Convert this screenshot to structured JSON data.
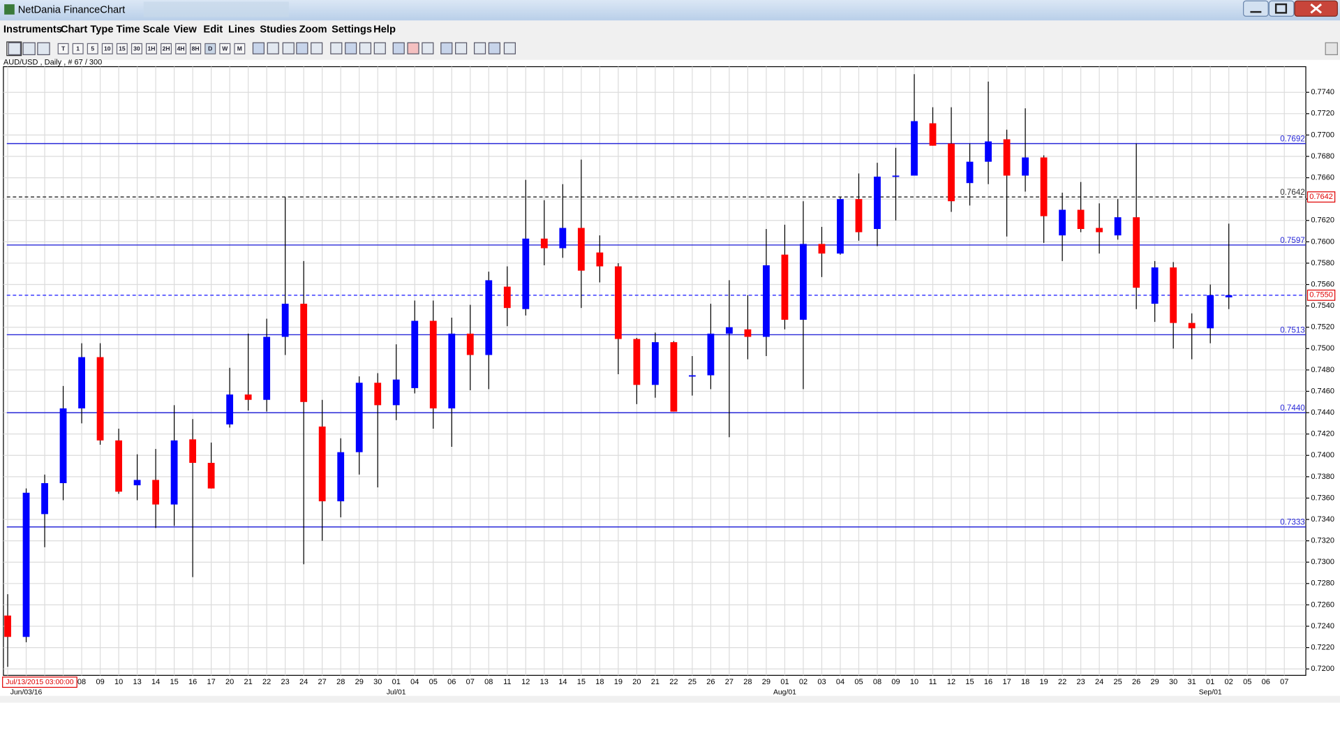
{
  "window": {
    "title": "NetDania FinanceChart"
  },
  "menu": [
    "Instruments",
    "Chart Type",
    "Time Scale",
    "View",
    "Edit",
    "Lines",
    "Studies",
    "Zoom",
    "Settings",
    "Help"
  ],
  "toolbar": [
    "T",
    "1",
    "5",
    "10",
    "15",
    "30",
    "1H",
    "2H",
    "4H",
    "8H",
    "D",
    "W",
    "M"
  ],
  "chart_data": {
    "type": "candlestick",
    "info": "AUD/USD , Daily , # 67 / 300",
    "cursor_time": "Jul/13/2015 03:00:00",
    "month_labels": [
      "Jun/03/16",
      "Jul/01",
      "Aug/01",
      "Sep/01"
    ],
    "categories": [
      null,
      null,
      null,
      null,
      "08",
      "09",
      "10",
      "13",
      "14",
      "15",
      "16",
      "17",
      "20",
      "21",
      "22",
      "23",
      "24",
      "27",
      "28",
      "29",
      "30",
      "01",
      "04",
      "05",
      "06",
      "07",
      "08",
      "11",
      "12",
      "13",
      "14",
      "15",
      "18",
      "19",
      "20",
      "21",
      "22",
      "25",
      "26",
      "27",
      "28",
      "29",
      "01",
      "02",
      "03",
      "04",
      "05",
      "08",
      "09",
      "10",
      "11",
      "12",
      "15",
      "16",
      "17",
      "18",
      "19",
      "22",
      "23",
      "24",
      "25",
      "26",
      "29",
      "30",
      "31",
      "01",
      "02",
      "05",
      "06",
      "07"
    ],
    "open": [
      0.725,
      0.723,
      0.7345,
      0.7374,
      0.7444,
      0.7492,
      0.7414,
      0.7372,
      0.7377,
      0.7354,
      0.7415,
      0.7393,
      0.7429,
      0.7457,
      0.7452,
      0.7511,
      0.7542,
      0.7427,
      0.7357,
      0.7403,
      0.7468,
      0.7447,
      0.7463,
      0.7526,
      0.7444,
      0.7514,
      0.7494,
      0.7558,
      0.7537,
      0.7603,
      0.7594,
      0.7613,
      0.759,
      0.7577,
      0.7509,
      0.7466,
      0.7506,
      0.7474,
      0.7475,
      0.7514,
      0.7518,
      0.7511,
      0.7588,
      0.7527,
      0.7598,
      0.7589,
      0.764,
      0.7612,
      0.7661,
      0.7662,
      0.7711,
      0.7692,
      0.7655,
      0.7675,
      0.7696,
      0.7662,
      0.7679,
      0.7606,
      0.763,
      0.7613,
      0.7606,
      0.7623,
      0.7542,
      0.7576,
      0.7524,
      0.7519,
      0.7548,
      null,
      null,
      null
    ],
    "high": [
      0.727,
      0.7369,
      0.7382,
      0.7465,
      0.7505,
      0.7505,
      0.7425,
      0.7401,
      0.7406,
      0.7447,
      0.7434,
      0.7412,
      0.7482,
      0.7514,
      0.7528,
      0.7642,
      0.7582,
      0.7452,
      0.7416,
      0.7474,
      0.7477,
      0.7504,
      0.7545,
      0.7545,
      0.7529,
      0.7541,
      0.7572,
      0.7577,
      0.7658,
      0.7639,
      0.7654,
      0.7677,
      0.7606,
      0.758,
      0.751,
      0.7515,
      0.7507,
      0.7493,
      0.7542,
      0.7564,
      0.755,
      0.7612,
      0.7616,
      0.7638,
      0.7614,
      0.7642,
      0.7664,
      0.7674,
      0.7688,
      0.7757,
      0.7726,
      0.7726,
      0.7692,
      0.775,
      0.7705,
      0.7725,
      0.7681,
      0.7646,
      0.7656,
      0.7636,
      0.764,
      0.7692,
      0.7582,
      0.7581,
      0.7533,
      0.756,
      0.7617,
      null,
      null,
      null
    ],
    "low": [
      0.7202,
      0.7225,
      0.7314,
      0.7358,
      0.743,
      0.741,
      0.7364,
      0.7358,
      0.7332,
      0.7334,
      0.7286,
      0.7369,
      0.7426,
      0.7442,
      0.7441,
      0.7494,
      0.7298,
      0.732,
      0.7342,
      0.7382,
      0.737,
      0.7433,
      0.7458,
      0.7425,
      0.7408,
      0.7461,
      0.7462,
      0.7521,
      0.7531,
      0.7578,
      0.7585,
      0.7538,
      0.7562,
      0.7476,
      0.7448,
      0.7454,
      0.7441,
      0.7456,
      0.7462,
      0.7417,
      0.749,
      0.7493,
      0.7518,
      0.7462,
      0.7567,
      0.7588,
      0.7601,
      0.7596,
      0.762,
      0.7662,
      0.769,
      0.7628,
      0.7634,
      0.7654,
      0.7605,
      0.7647,
      0.7599,
      0.7582,
      0.7609,
      0.7589,
      0.7602,
      0.7537,
      0.7525,
      0.75,
      0.749,
      0.7505,
      0.7537,
      null,
      null,
      null
    ],
    "close": [
      0.723,
      0.7365,
      0.7374,
      0.7444,
      0.7492,
      0.7414,
      0.7366,
      0.7377,
      0.7354,
      0.7414,
      0.7393,
      0.7369,
      0.7457,
      0.7452,
      0.7511,
      0.7542,
      0.745,
      0.7357,
      0.7403,
      0.7468,
      0.7447,
      0.7471,
      0.7526,
      0.7444,
      0.7514,
      0.7494,
      0.7564,
      0.7538,
      0.7603,
      0.7594,
      0.7613,
      0.7573,
      0.7577,
      0.7509,
      0.7466,
      0.7506,
      0.7441,
      0.7475,
      0.7514,
      0.752,
      0.7511,
      0.7578,
      0.7527,
      0.7598,
      0.7589,
      0.764,
      0.7609,
      0.7661,
      0.7662,
      0.7713,
      0.769,
      0.7638,
      0.7675,
      0.7694,
      0.7662,
      0.7679,
      0.7624,
      0.763,
      0.7612,
      0.7609,
      0.7623,
      0.7557,
      0.7576,
      0.7524,
      0.7519,
      0.755,
      0.755,
      null,
      null,
      null
    ],
    "up_color": "#0000ff",
    "down_color": "#ff0000",
    "ylim": [
      0.7194,
      0.7764
    ],
    "yticks": [
      {
        "value": 0.72,
        "label": "0.7200"
      },
      {
        "value": 0.722,
        "label": "0.7220"
      },
      {
        "value": 0.724,
        "label": "0.7240"
      },
      {
        "value": 0.726,
        "label": "0.7260"
      },
      {
        "value": 0.728,
        "label": "0.7280"
      },
      {
        "value": 0.73,
        "label": "0.7300"
      },
      {
        "value": 0.732,
        "label": "0.7320"
      },
      {
        "value": 0.734,
        "label": "0.7340"
      },
      {
        "value": 0.736,
        "label": "0.7360"
      },
      {
        "value": 0.738,
        "label": "0.7380"
      },
      {
        "value": 0.74,
        "label": "0.7400"
      },
      {
        "value": 0.742,
        "label": "0.7420"
      },
      {
        "value": 0.744,
        "label": "0.7440"
      },
      {
        "value": 0.746,
        "label": "0.7460"
      },
      {
        "value": 0.748,
        "label": "0.7480"
      },
      {
        "value": 0.75,
        "label": "0.7500"
      },
      {
        "value": 0.752,
        "label": "0.7520"
      },
      {
        "value": 0.754,
        "label": "0.7540"
      },
      {
        "value": 0.756,
        "label": "0.7560"
      },
      {
        "value": 0.758,
        "label": "0.7580"
      },
      {
        "value": 0.76,
        "label": "0.7600"
      },
      {
        "value": 0.762,
        "label": "0.7620"
      },
      {
        "value": 0.764,
        "label": "0.7640"
      },
      {
        "value": 0.766,
        "label": "0.7660"
      },
      {
        "value": 0.768,
        "label": "0.7680"
      },
      {
        "value": 0.77,
        "label": "0.7700"
      },
      {
        "value": 0.772,
        "label": "0.7720"
      },
      {
        "value": 0.774,
        "label": "0.7740"
      }
    ],
    "grid": true,
    "levels": [
      {
        "value": 0.7692,
        "color": "#2828d8",
        "dashed": false,
        "inline_label": true,
        "axis_box": false
      },
      {
        "value": 0.7642,
        "color": "#333333",
        "dashed": true,
        "inline_label": true,
        "axis_box": true
      },
      {
        "value": 0.7597,
        "color": "#2828d8",
        "dashed": false,
        "inline_label": true,
        "axis_box": false
      },
      {
        "value": 0.755,
        "label": "0.7550",
        "color": "#3a3aff",
        "dashed": true,
        "inline_label": false,
        "axis_box": true
      },
      {
        "value": 0.7513,
        "color": "#2828d8",
        "dashed": false,
        "inline_label": true,
        "axis_box": false
      },
      {
        "value": 0.744,
        "label": "0.7440",
        "color": "#2828d8",
        "dashed": false,
        "inline_label": true,
        "axis_box": false
      },
      {
        "value": 0.7333,
        "color": "#2828d8",
        "dashed": false,
        "inline_label": true,
        "axis_box": false
      }
    ]
  }
}
